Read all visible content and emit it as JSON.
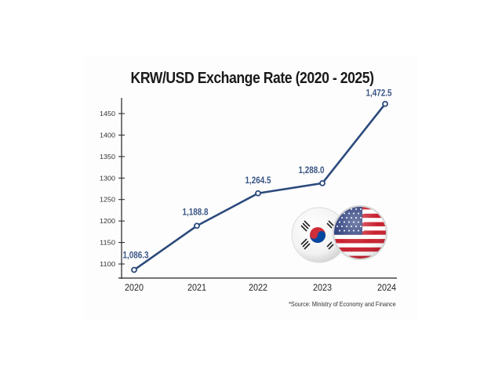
{
  "chart_data": {
    "type": "line",
    "title": "KRW/USD Exchange Rate (2020 - 2025)",
    "xlabel": "",
    "ylabel": "",
    "categories": [
      "2020",
      "2021",
      "2022",
      "2023",
      "2024"
    ],
    "series": [
      {
        "name": "KRW/USD",
        "values": [
          1086.3,
          1188.8,
          1264.5,
          1288.0,
          1472.5
        ],
        "labels": [
          "1,086.3",
          "1,188.8",
          "1,264.5",
          "1,288.0",
          "1,472.5"
        ],
        "color": "#2c4a7c"
      }
    ],
    "yticks": [
      "1100",
      "1150",
      "1200",
      "1250",
      "1300",
      "1350",
      "1400",
      "1450"
    ],
    "ylim": [
      1080,
      1490
    ],
    "grid": false,
    "legend": "none",
    "annotation": "*Source: Ministry of Economy and Finance",
    "decoration": "South Korea and United States flag badges"
  },
  "header": {
    "title": "KRW/USD Exchange Rate (2020 - 2025)"
  },
  "footer": {
    "source": "*Source: Ministry of Economy and Finance"
  },
  "colors": {
    "line": "#2c4a7c",
    "label": "#3a5585",
    "axis": "#222222"
  }
}
